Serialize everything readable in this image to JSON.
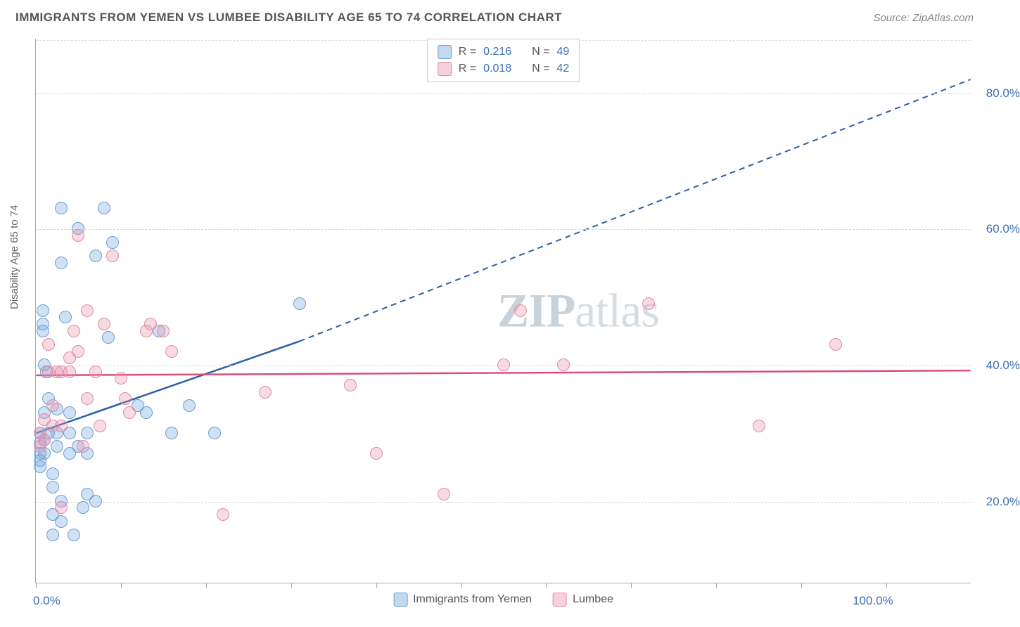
{
  "title": "IMMIGRANTS FROM YEMEN VS LUMBEE DISABILITY AGE 65 TO 74 CORRELATION CHART",
  "source": "Source: ZipAtlas.com",
  "ylabel": "Disability Age 65 to 74",
  "watermark_a": "ZIP",
  "watermark_b": "atlas",
  "chart": {
    "type": "scatter",
    "xmin": 0,
    "xmax": 110,
    "ymin": 8,
    "ymax": 88,
    "xticks": [
      0,
      10,
      20,
      30,
      40,
      50,
      60,
      70,
      80,
      90,
      100
    ],
    "yticks": [
      20,
      40,
      60,
      80
    ],
    "xlabels": {
      "0": "0.0%",
      "100": "100.0%"
    },
    "ylabels": {
      "20": "20.0%",
      "40": "40.0%",
      "60": "60.0%",
      "80": "80.0%"
    },
    "grid_color": "#d8d8d8",
    "axis_color": "#aaaaaa",
    "background_color": "#ffffff",
    "label_color": "#3b6fb6",
    "point_radius": 9,
    "series": [
      {
        "name": "Immigrants from Yemen",
        "color_fill": "rgba(120,170,220,0.35)",
        "color_stroke": "#6b9fd4",
        "r": "0.216",
        "n": "49",
        "trend": {
          "x1": 0,
          "y1": 30,
          "x2_solid": 31,
          "y2_solid": 43.5,
          "x2": 110,
          "y2": 82,
          "color": "#2d5fa8",
          "width": 2.5
        },
        "points": [
          [
            0.5,
            27
          ],
          [
            0.5,
            28.5
          ],
          [
            0.5,
            30
          ],
          [
            0.5,
            25
          ],
          [
            0.5,
            26
          ],
          [
            0.8,
            48
          ],
          [
            0.8,
            46
          ],
          [
            0.8,
            45
          ],
          [
            1,
            29
          ],
          [
            1,
            27
          ],
          [
            1,
            33
          ],
          [
            1,
            40
          ],
          [
            1.2,
            39
          ],
          [
            1.5,
            30
          ],
          [
            1.5,
            35
          ],
          [
            2,
            22
          ],
          [
            2,
            18
          ],
          [
            2,
            15
          ],
          [
            2,
            24
          ],
          [
            2.5,
            30
          ],
          [
            2.5,
            33.5
          ],
          [
            2.5,
            28
          ],
          [
            3,
            17
          ],
          [
            3,
            20
          ],
          [
            3,
            63
          ],
          [
            3,
            55
          ],
          [
            3.5,
            47
          ],
          [
            4,
            30
          ],
          [
            4,
            33
          ],
          [
            4,
            27
          ],
          [
            4.5,
            15
          ],
          [
            5,
            28
          ],
          [
            5,
            60
          ],
          [
            5.5,
            19
          ],
          [
            6,
            30
          ],
          [
            6,
            27
          ],
          [
            6,
            21
          ],
          [
            7,
            20
          ],
          [
            7,
            56
          ],
          [
            8,
            63
          ],
          [
            8.5,
            44
          ],
          [
            9,
            58
          ],
          [
            12,
            34
          ],
          [
            13,
            33
          ],
          [
            14.5,
            45
          ],
          [
            16,
            30
          ],
          [
            18,
            34
          ],
          [
            21,
            30
          ],
          [
            31,
            49
          ]
        ]
      },
      {
        "name": "Lumbee",
        "color_fill": "rgba(235,150,175,0.35)",
        "color_stroke": "#e08ba5",
        "r": "0.018",
        "n": "42",
        "trend": {
          "x1": 0,
          "y1": 38.5,
          "x2_solid": 110,
          "y2_solid": 39.2,
          "x2": 110,
          "y2": 39.2,
          "color": "#d94f7a",
          "width": 2.5
        },
        "points": [
          [
            0.5,
            28
          ],
          [
            0.5,
            30
          ],
          [
            1,
            29
          ],
          [
            1,
            32
          ],
          [
            1.5,
            39
          ],
          [
            1.5,
            43
          ],
          [
            2,
            31
          ],
          [
            2,
            34
          ],
          [
            2.5,
            39
          ],
          [
            3,
            39
          ],
          [
            3,
            31
          ],
          [
            3,
            19
          ],
          [
            4,
            41
          ],
          [
            4,
            39
          ],
          [
            4.5,
            45
          ],
          [
            5,
            42
          ],
          [
            5,
            59
          ],
          [
            5.5,
            28
          ],
          [
            6,
            48
          ],
          [
            6,
            35
          ],
          [
            7,
            39
          ],
          [
            7.5,
            31
          ],
          [
            8,
            46
          ],
          [
            9,
            56
          ],
          [
            10,
            38
          ],
          [
            10.5,
            35
          ],
          [
            11,
            33
          ],
          [
            13,
            45
          ],
          [
            13.5,
            46
          ],
          [
            15,
            45
          ],
          [
            16,
            42
          ],
          [
            22,
            18
          ],
          [
            27,
            36
          ],
          [
            37,
            37
          ],
          [
            40,
            27
          ],
          [
            48,
            21
          ],
          [
            55,
            40
          ],
          [
            57,
            48
          ],
          [
            62,
            40
          ],
          [
            72,
            49
          ],
          [
            85,
            31
          ],
          [
            94,
            43
          ]
        ]
      }
    ]
  },
  "legend_top": {
    "r_label": "R =",
    "n_label": "N ="
  }
}
